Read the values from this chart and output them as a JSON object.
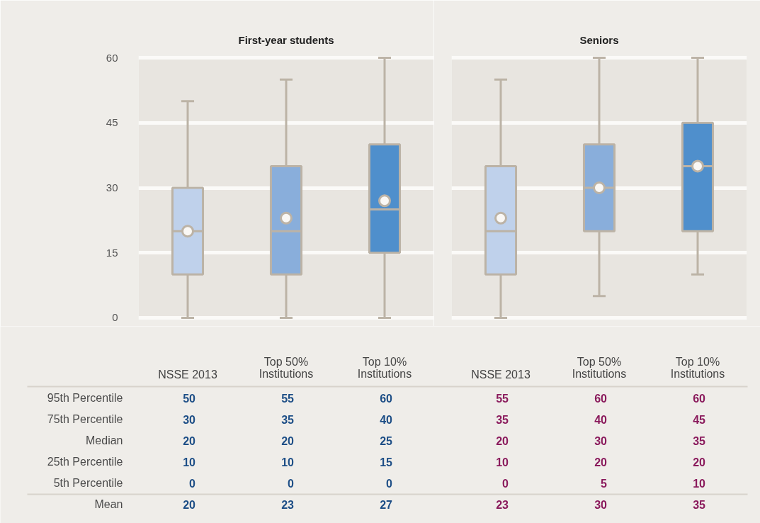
{
  "chart_data": [
    {
      "type": "box",
      "title": "First-year students",
      "categories": [
        "NSSE 2013",
        "Top 50% Institutions",
        "Top 10% Institutions"
      ],
      "colors": [
        "#bfd1eb",
        "#89aedb",
        "#4f8fcc"
      ],
      "boxes": [
        {
          "low": 0,
          "q1": 10,
          "median": 20,
          "q3": 30,
          "high": 50,
          "mean": 20
        },
        {
          "low": 0,
          "q1": 10,
          "median": 20,
          "q3": 35,
          "high": 55,
          "mean": 23
        },
        {
          "low": 0,
          "q1": 15,
          "median": 25,
          "q3": 40,
          "high": 60,
          "mean": 27
        }
      ],
      "ylim": [
        -0.5,
        60.5
      ],
      "yticks": [
        0,
        15,
        30,
        45,
        60
      ],
      "grid": "y",
      "annotations": [
        "95th Percentile",
        "75th Percentile",
        "Median",
        "25th Percentile",
        "5th Percentile",
        "Mean",
        "50",
        "55",
        "60",
        "30",
        "35",
        "40",
        "20",
        "20",
        "25",
        "10",
        "10",
        "15",
        "0",
        "0",
        "0",
        "20",
        "23",
        "27"
      ]
    },
    {
      "type": "box",
      "title": "Seniors",
      "categories": [
        "NSSE 2013",
        "Top 50% Institutions",
        "Top 10% Institutions"
      ],
      "colors": [
        "#bfd1eb",
        "#89aedb",
        "#4f8fcc"
      ],
      "boxes": [
        {
          "low": 0,
          "q1": 10,
          "median": 20,
          "q3": 35,
          "high": 55,
          "mean": 23
        },
        {
          "low": 5,
          "q1": 20,
          "median": 30,
          "q3": 40,
          "high": 60,
          "mean": 30
        },
        {
          "low": 10,
          "q1": 20,
          "median": 35,
          "q3": 45,
          "high": 60,
          "mean": 35
        }
      ],
      "ylim": [
        -0.5,
        60.5
      ],
      "yticks": [
        0,
        15,
        30,
        45,
        60
      ],
      "grid": "y",
      "tick_labels": "x",
      "annotations": [
        "55",
        "60",
        "60",
        "35",
        "40",
        "45",
        "20",
        "30",
        "35",
        "10",
        "20",
        "20",
        "0",
        "5",
        "10",
        "23",
        "30",
        "35"
      ]
    }
  ]
}
